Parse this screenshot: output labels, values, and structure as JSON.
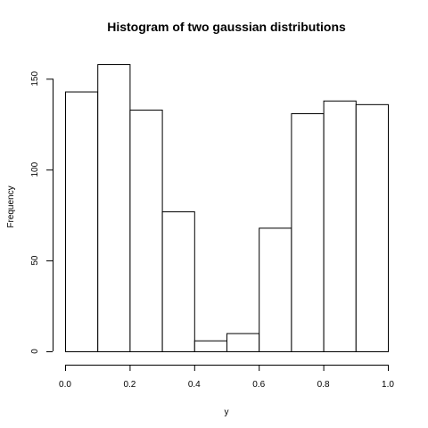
{
  "chart_data": {
    "type": "bar",
    "title": "Histogram of two gaussian distributions",
    "xlabel": "y",
    "ylabel": "Frequency",
    "bin_edges": [
      0.0,
      0.1,
      0.2,
      0.3,
      0.4,
      0.5,
      0.6,
      0.7,
      0.8,
      0.9,
      1.0
    ],
    "values": [
      143,
      158,
      133,
      77,
      6,
      10,
      68,
      131,
      138,
      136
    ],
    "xlim": [
      0.0,
      1.0
    ],
    "ylim": [
      0,
      158
    ],
    "x_ticks": [
      0.0,
      0.2,
      0.4,
      0.6,
      0.8,
      1.0
    ],
    "x_tick_labels": [
      "0.0",
      "0.2",
      "0.4",
      "0.6",
      "0.8",
      "1.0"
    ],
    "y_ticks": [
      0,
      50,
      100,
      150
    ],
    "y_tick_labels": [
      "0",
      "50",
      "100",
      "150"
    ],
    "grid": false,
    "legend": "none"
  }
}
